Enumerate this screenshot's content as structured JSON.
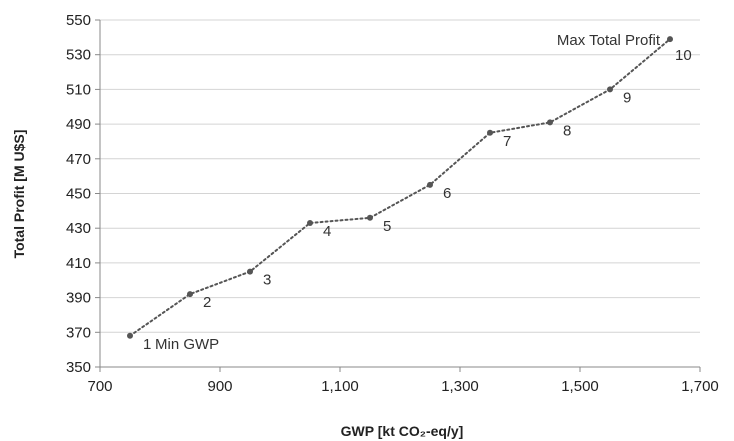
{
  "chart_data": {
    "type": "line",
    "xlabel": "GWP [kt CO₂-eq/y]",
    "ylabel": "Total Profit [M U$S]",
    "xlim": [
      700,
      1700
    ],
    "ylim": [
      350,
      550
    ],
    "x_ticks": [
      700,
      900,
      1100,
      1300,
      1500,
      1700
    ],
    "x_tick_labels": [
      "700",
      "900",
      "1,100",
      "1,300",
      "1,500",
      "1,700"
    ],
    "y_ticks": [
      350,
      370,
      390,
      410,
      430,
      450,
      470,
      490,
      510,
      530,
      550
    ],
    "y_tick_labels": [
      "350",
      "370",
      "390",
      "410",
      "430",
      "450",
      "470",
      "490",
      "510",
      "530",
      "550"
    ],
    "grid": "horizontal",
    "points": [
      {
        "label": "1",
        "x": 750,
        "y": 368
      },
      {
        "label": "2",
        "x": 850,
        "y": 392
      },
      {
        "label": "3",
        "x": 950,
        "y": 405
      },
      {
        "label": "4",
        "x": 1050,
        "y": 433
      },
      {
        "label": "5",
        "x": 1150,
        "y": 436
      },
      {
        "label": "6",
        "x": 1250,
        "y": 455
      },
      {
        "label": "7",
        "x": 1350,
        "y": 485
      },
      {
        "label": "8",
        "x": 1450,
        "y": 491
      },
      {
        "label": "9",
        "x": 1550,
        "y": 510
      },
      {
        "label": "10",
        "x": 1650,
        "y": 539
      }
    ],
    "annotations": [
      {
        "text": "Min GWP",
        "color": "#2eaa4f",
        "point": "1"
      },
      {
        "text": "Max Total Profit",
        "color": "#e0261c",
        "point": "10"
      }
    ],
    "colors": {
      "series": "#555555",
      "min_label": "#2eaa4f",
      "max_label": "#e0261c"
    }
  }
}
